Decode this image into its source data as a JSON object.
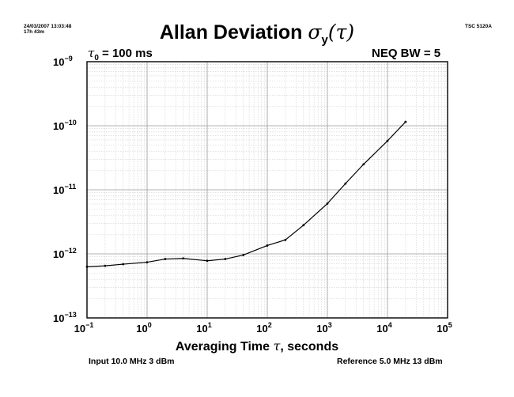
{
  "header": {
    "timestamp": "24/03/2007 13:03:48",
    "duration": "17h 43m",
    "instrument": "TSC 5120A"
  },
  "chart_data": {
    "type": "line",
    "title_main": "Allan Deviation ",
    "title_symbol": "σ",
    "title_sub": "y",
    "title_arg": "(τ)",
    "tau0_symbol": "τ",
    "tau0_sub": "0",
    "tau0_value": " = 100 ms",
    "neq_bw": "NEQ BW = 5",
    "xlabel_prefix": "Averaging Time ",
    "xlabel_symbol": "τ",
    "xlabel_suffix": ", seconds",
    "x_scale": "log",
    "y_scale": "log",
    "xlim": [
      0.1,
      100000
    ],
    "ylim": [
      1e-13,
      1e-09
    ],
    "x_ticks": [
      {
        "base": "10",
        "exp": "−1"
      },
      {
        "base": "10",
        "exp": "0"
      },
      {
        "base": "10",
        "exp": "1"
      },
      {
        "base": "10",
        "exp": "2"
      },
      {
        "base": "10",
        "exp": "3"
      },
      {
        "base": "10",
        "exp": "4"
      },
      {
        "base": "10",
        "exp": "5"
      }
    ],
    "y_ticks": [
      {
        "base": "10",
        "exp": "−9"
      },
      {
        "base": "10",
        "exp": "−10"
      },
      {
        "base": "10",
        "exp": "−11"
      },
      {
        "base": "10",
        "exp": "−12"
      },
      {
        "base": "10",
        "exp": "−13"
      }
    ],
    "grid": true,
    "series": [
      {
        "x": [
          0.1,
          0.2,
          0.4,
          1,
          2,
          4,
          10,
          20,
          40,
          100,
          200,
          400,
          1000,
          2000,
          4000,
          10000,
          20000
        ],
        "y": [
          6.3e-13,
          6.5e-13,
          6.9e-13,
          7.4e-13,
          8.3e-13,
          8.5e-13,
          7.8e-13,
          8.3e-13,
          9.6e-13,
          1.35e-12,
          1.65e-12,
          2.8e-12,
          6.1e-12,
          1.25e-11,
          2.5e-11,
          5.8e-11,
          1.15e-10
        ]
      }
    ],
    "color": "#000000"
  },
  "footer": {
    "input": "Input 10.0 MHz 3 dBm",
    "reference": "Reference 5.0 MHz 13 dBm"
  }
}
